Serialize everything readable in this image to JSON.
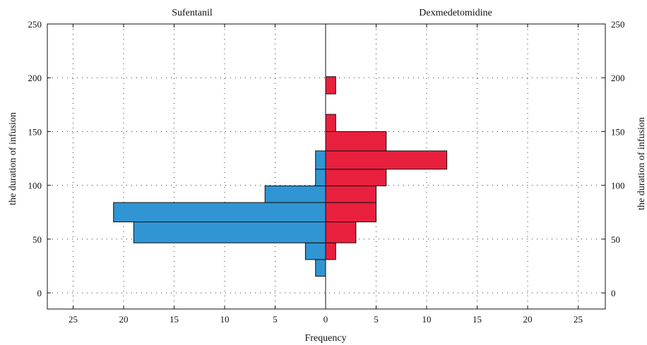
{
  "chart_data": {
    "type": "bar",
    "orientation": "horizontal",
    "layout": "back-to-back",
    "xlabel": "Frequency",
    "ylabel": "the duration of infusion",
    "ylabel_right": "the duration of infusion",
    "xlim": [
      -28,
      28
    ],
    "ylim": [
      -15,
      250
    ],
    "x_ticks": [
      25,
      20,
      15,
      10,
      5,
      0,
      5,
      10,
      15,
      20,
      25
    ],
    "y_ticks": [
      0,
      50,
      100,
      150,
      200,
      250
    ],
    "grid": true,
    "bin_width": 15.5,
    "series": [
      {
        "name": "Sufentanil",
        "side": "left",
        "color": "#3095d2",
        "bins": [
          {
            "from": 15.5,
            "to": 31,
            "value": 1
          },
          {
            "from": 31,
            "to": 46.5,
            "value": 2
          },
          {
            "from": 46.5,
            "to": 66,
            "value": 19
          },
          {
            "from": 66,
            "to": 84,
            "value": 21
          },
          {
            "from": 84,
            "to": 99.5,
            "value": 6
          },
          {
            "from": 99.5,
            "to": 115,
            "value": 1
          },
          {
            "from": 115,
            "to": 132,
            "value": 1
          }
        ]
      },
      {
        "name": "Dexmedetomidine",
        "side": "right",
        "color": "#e8203d",
        "bins": [
          {
            "from": 31,
            "to": 46.5,
            "value": 1
          },
          {
            "from": 46.5,
            "to": 66,
            "value": 3
          },
          {
            "from": 66,
            "to": 84,
            "value": 5
          },
          {
            "from": 84,
            "to": 99.5,
            "value": 5
          },
          {
            "from": 99.5,
            "to": 115,
            "value": 6
          },
          {
            "from": 115,
            "to": 132,
            "value": 12
          },
          {
            "from": 132,
            "to": 150,
            "value": 6
          },
          {
            "from": 150,
            "to": 166,
            "value": 1
          },
          {
            "from": 185,
            "to": 201,
            "value": 1
          }
        ]
      }
    ]
  }
}
